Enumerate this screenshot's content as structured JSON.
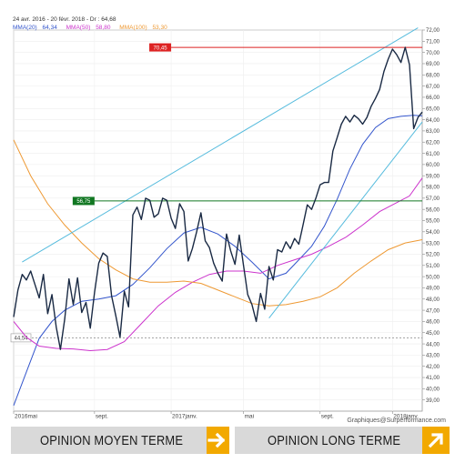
{
  "header": {
    "line": "24 avr. 2016 - 20 févr. 2018 - Dr : 64,68",
    "legend": [
      {
        "label": "MMA(20)",
        "value": "64,34",
        "color": "#3355cc"
      },
      {
        "label": "MMA(50)",
        "value": "58,80",
        "color": "#cc33cc"
      },
      {
        "label": "MMA(100)",
        "value": "53,30",
        "color": "#ee9933"
      }
    ]
  },
  "credit": "Graphiques@Surperformance.com",
  "footer": {
    "medium_term": "OPINION MOYEN TERME",
    "long_term": "OPINION LONG TERME",
    "medium_icon": "right-arrow-icon",
    "long_icon": "up-right-arrow-icon",
    "accent_color": "#f2a900"
  },
  "chart_data": {
    "type": "line",
    "y_range": [
      38,
      72
    ],
    "y_ticks": [
      "39,00",
      "40,00",
      "41,00",
      "42,00",
      "43,00",
      "44,00",
      "45,00",
      "46,00",
      "47,00",
      "48,00",
      "49,00",
      "50,00",
      "51,00",
      "52,00",
      "53,00",
      "54,00",
      "55,00",
      "56,00",
      "57,00",
      "58,00",
      "59,00",
      "60,00",
      "61,00",
      "62,00",
      "63,00",
      "64,00",
      "65,00",
      "66,00",
      "67,00",
      "68,00",
      "69,00",
      "70,00",
      "71,00",
      "72,00"
    ],
    "x_labels": [
      {
        "text": "2016mai",
        "week": 0
      },
      {
        "text": "sept.",
        "week": 19
      },
      {
        "text": "2017janv.",
        "week": 37
      },
      {
        "text": "mai",
        "week": 54
      },
      {
        "text": "sept.",
        "week": 72
      },
      {
        "text": "2018janv.",
        "week": 89
      }
    ],
    "weeks_total": 95,
    "price_series": {
      "name": "Cours",
      "color": "#1a2a44",
      "values": [
        46.4,
        48.8,
        50.2,
        49.7,
        50.5,
        49.3,
        48.1,
        50.2,
        46.7,
        48.4,
        45.5,
        43.5,
        46.2,
        49.8,
        47.5,
        49.9,
        46.8,
        47.7,
        45.4,
        48.6,
        51.2,
        52.1,
        51.8,
        48.3,
        46.5,
        44.6,
        48.7,
        47.3,
        55.5,
        56.2,
        55.1,
        57.0,
        56.8,
        55.3,
        55.6,
        57.0,
        56.8,
        55.2,
        54.3,
        56.5,
        55.8,
        51.4,
        52.5,
        54.0,
        55.7,
        53.2,
        52.6,
        51.2,
        50.3,
        49.6,
        53.8,
        52.3,
        51.1,
        53.7,
        51.0,
        48.4,
        47.5,
        46.0,
        48.5,
        47.1,
        50.9,
        49.7,
        52.4,
        52.2,
        53.1,
        52.5,
        53.4,
        52.9,
        54.6,
        56.4,
        56.0,
        57.0,
        58.2,
        58.4,
        58.4,
        61.2,
        62.4,
        63.6,
        64.3,
        63.8,
        64.4,
        64.1,
        63.6,
        64.2,
        65.2,
        65.9,
        66.7,
        68.3,
        69.4,
        70.3,
        69.8,
        69.1,
        70.45,
        68.9,
        63.2,
        64.2,
        64.68
      ]
    },
    "moving_averages": [
      {
        "name": "MMA(20)",
        "color": "#3355cc",
        "points": [
          [
            0,
            38.5
          ],
          [
            3,
            41.5
          ],
          [
            6,
            44.5
          ],
          [
            9,
            46.0
          ],
          [
            12,
            47.0
          ],
          [
            16,
            47.8
          ],
          [
            20,
            48.0
          ],
          [
            24,
            48.3
          ],
          [
            28,
            49.3
          ],
          [
            32,
            50.8
          ],
          [
            36,
            52.5
          ],
          [
            40,
            53.9
          ],
          [
            44,
            54.4
          ],
          [
            48,
            53.8
          ],
          [
            52,
            52.7
          ],
          [
            56,
            51.3
          ],
          [
            60,
            49.8
          ],
          [
            64,
            50.3
          ],
          [
            67,
            51.5
          ],
          [
            70,
            52.7
          ],
          [
            73,
            54.5
          ],
          [
            76,
            56.9
          ],
          [
            79,
            59.6
          ],
          [
            82,
            61.8
          ],
          [
            85,
            63.3
          ],
          [
            88,
            64.1
          ],
          [
            91,
            64.3
          ],
          [
            94,
            64.4
          ],
          [
            96,
            64.34
          ]
        ]
      },
      {
        "name": "MMA(50)",
        "color": "#cc33cc",
        "points": [
          [
            0,
            46.0
          ],
          [
            3,
            44.6
          ],
          [
            6,
            43.8
          ],
          [
            10,
            43.6
          ],
          [
            14,
            43.55
          ],
          [
            18,
            43.4
          ],
          [
            22,
            43.5
          ],
          [
            26,
            44.2
          ],
          [
            30,
            45.8
          ],
          [
            34,
            47.4
          ],
          [
            38,
            48.6
          ],
          [
            42,
            49.5
          ],
          [
            46,
            50.2
          ],
          [
            50,
            50.5
          ],
          [
            54,
            50.5
          ],
          [
            58,
            50.3
          ],
          [
            62,
            51.0
          ],
          [
            66,
            51.5
          ],
          [
            70,
            52.0
          ],
          [
            74,
            52.7
          ],
          [
            78,
            53.5
          ],
          [
            82,
            54.6
          ],
          [
            86,
            55.8
          ],
          [
            90,
            56.6
          ],
          [
            93,
            57.2
          ],
          [
            96,
            58.8
          ]
        ]
      },
      {
        "name": "MMA(100)",
        "color": "#ee9933",
        "points": [
          [
            0,
            62.2
          ],
          [
            4,
            59.0
          ],
          [
            8,
            56.5
          ],
          [
            12,
            54.6
          ],
          [
            16,
            53.0
          ],
          [
            20,
            51.6
          ],
          [
            24,
            50.6
          ],
          [
            28,
            49.8
          ],
          [
            32,
            49.5
          ],
          [
            36,
            49.5
          ],
          [
            40,
            49.6
          ],
          [
            44,
            49.4
          ],
          [
            48,
            48.8
          ],
          [
            52,
            48.2
          ],
          [
            56,
            47.6
          ],
          [
            60,
            47.4
          ],
          [
            64,
            47.5
          ],
          [
            68,
            47.8
          ],
          [
            72,
            48.2
          ],
          [
            76,
            49.0
          ],
          [
            80,
            50.3
          ],
          [
            84,
            51.4
          ],
          [
            88,
            52.4
          ],
          [
            92,
            53.0
          ],
          [
            96,
            53.3
          ]
        ]
      }
    ],
    "trendlines": [
      {
        "name": "upper-channel",
        "color": "#55bbdd",
        "from": [
          2,
          51.3
        ],
        "to": [
          95,
          72.2
        ]
      },
      {
        "name": "lower-channel",
        "color": "#55bbdd",
        "from": [
          60,
          46.3
        ],
        "to": [
          96,
          63.8
        ]
      }
    ],
    "levels": [
      {
        "name": "resistance",
        "value": 70.45,
        "label": "70,45",
        "color": "#dd2222",
        "from_week": 37
      },
      {
        "name": "support",
        "value": 56.75,
        "label": "56,75",
        "color": "#117722",
        "from_week": 19
      },
      {
        "name": "reference",
        "value": 44.54,
        "label": "44,54",
        "color": "#888888",
        "from_week": 0
      }
    ]
  }
}
